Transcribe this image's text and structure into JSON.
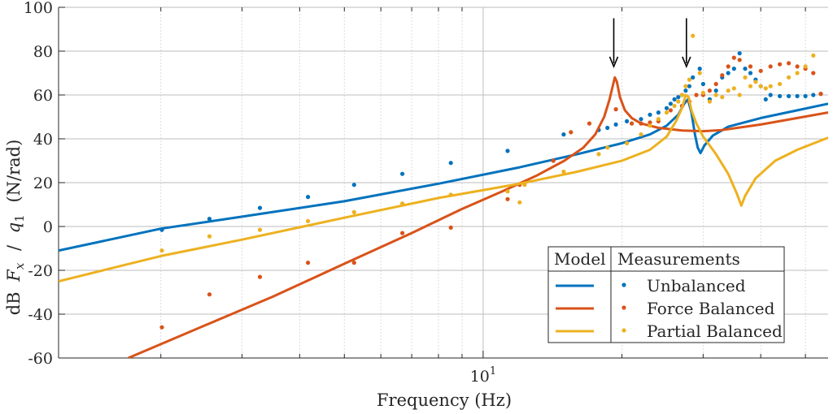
{
  "chart_data": {
    "type": "line",
    "xlabel": "Frequency (Hz)",
    "ylabel_parts": [
      "dB",
      "F",
      "x",
      "/",
      "q",
      "1",
      "(N/rad)"
    ],
    "x_scale": "log",
    "xlim": [
      1.2,
      56
    ],
    "ylim": [
      -60,
      100
    ],
    "y_ticks": [
      -60,
      -40,
      -20,
      0,
      20,
      40,
      60,
      80,
      100
    ],
    "y_tick_labels": [
      "-60",
      "-40",
      "-20",
      "0",
      "20",
      "40",
      "60",
      "80",
      "100"
    ],
    "x_tick_label": {
      "base": "10",
      "exp": "1",
      "value": 10
    },
    "grid": true,
    "legend": {
      "placement": "bottom-right",
      "header_model": "Model",
      "header_measurements": "Measurements",
      "entries": [
        "Unbalanced",
        "Force Balanced",
        "Partial Balanced"
      ]
    },
    "annotations": [
      {
        "type": "arrow",
        "x": 19.2,
        "y_from": 95,
        "y_to": 73
      },
      {
        "type": "arrow",
        "x": 27.6,
        "y_from": 95,
        "y_to": 73
      }
    ],
    "series": [
      {
        "name": "Unbalanced",
        "color": "#0072BD",
        "model": [
          [
            1.2,
            -11
          ],
          [
            2,
            -1
          ],
          [
            3,
            4.5
          ],
          [
            5,
            11.5
          ],
          [
            8,
            19.5
          ],
          [
            12,
            27
          ],
          [
            16,
            33
          ],
          [
            20,
            38
          ],
          [
            23,
            42
          ],
          [
            25,
            46
          ],
          [
            26.5,
            51
          ],
          [
            27.3,
            56
          ],
          [
            27.8,
            58
          ],
          [
            28.3,
            52
          ],
          [
            28.8,
            42
          ],
          [
            29.2,
            36
          ],
          [
            29.6,
            33.5
          ],
          [
            30.2,
            37
          ],
          [
            31.5,
            41.5
          ],
          [
            34,
            45.5
          ],
          [
            40,
            49.5
          ],
          [
            48,
            53
          ],
          [
            56,
            56
          ]
        ],
        "measured": [
          [
            2.01,
            -1.5
          ],
          [
            2.55,
            3.5
          ],
          [
            3.28,
            8.5
          ],
          [
            4.17,
            13.5
          ],
          [
            5.25,
            19
          ],
          [
            6.68,
            24
          ],
          [
            8.51,
            29
          ],
          [
            11.3,
            34.5
          ],
          [
            14.95,
            42
          ],
          [
            17.81,
            44
          ],
          [
            18.6,
            45
          ],
          [
            19.4,
            46.5
          ],
          [
            20.5,
            48
          ],
          [
            22,
            49
          ],
          [
            23,
            51
          ],
          [
            24,
            52
          ],
          [
            25,
            54
          ],
          [
            25.5,
            56
          ],
          [
            26,
            58
          ],
          [
            26.5,
            59
          ],
          [
            27,
            60
          ],
          [
            27.5,
            62
          ],
          [
            28,
            64
          ],
          [
            28.5,
            68
          ],
          [
            29.5,
            72
          ],
          [
            30,
            65
          ],
          [
            31,
            58
          ],
          [
            32,
            62
          ],
          [
            33,
            68
          ],
          [
            34,
            70
          ],
          [
            35,
            72
          ],
          [
            36,
            79
          ],
          [
            37,
            72
          ],
          [
            38,
            70
          ],
          [
            39,
            67
          ],
          [
            40,
            64
          ],
          [
            41,
            58
          ],
          [
            42,
            60
          ],
          [
            44,
            59.5
          ],
          [
            46,
            59.5
          ],
          [
            48,
            59.5
          ],
          [
            50,
            59.5
          ],
          [
            52,
            60
          ],
          [
            54,
            60.5
          ]
        ]
      },
      {
        "name": "Force Balanced",
        "color": "#D95319",
        "model": [
          [
            1.7,
            -60
          ],
          [
            2.5,
            -45
          ],
          [
            3.5,
            -32
          ],
          [
            5,
            -17
          ],
          [
            7,
            -3
          ],
          [
            9,
            8
          ],
          [
            11,
            16
          ],
          [
            13,
            23
          ],
          [
            15,
            30
          ],
          [
            16.5,
            36
          ],
          [
            17.5,
            42
          ],
          [
            18.3,
            50
          ],
          [
            18.8,
            58
          ],
          [
            19.1,
            64
          ],
          [
            19.3,
            68
          ],
          [
            19.5,
            66
          ],
          [
            19.8,
            59
          ],
          [
            20.3,
            53
          ],
          [
            21,
            49.5
          ],
          [
            22,
            47
          ],
          [
            24,
            45
          ],
          [
            27,
            43.8
          ],
          [
            30,
            43.5
          ],
          [
            33,
            44
          ],
          [
            40,
            46.5
          ],
          [
            48,
            49.5
          ],
          [
            56,
            52
          ]
        ],
        "measured": [
          [
            2.01,
            -46
          ],
          [
            2.55,
            -31
          ],
          [
            3.28,
            -23
          ],
          [
            4.17,
            -16.5
          ],
          [
            5.25,
            -16.5
          ],
          [
            6.68,
            -3
          ],
          [
            8.51,
            -0.5
          ],
          [
            11.3,
            12.5
          ],
          [
            12,
            19
          ],
          [
            12.3,
            19.5
          ],
          [
            14.2,
            30
          ],
          [
            15.5,
            43
          ],
          [
            17,
            47
          ],
          [
            19.4,
            53.5
          ],
          [
            21,
            47
          ],
          [
            22,
            47
          ],
          [
            23,
            47.5
          ],
          [
            24,
            48
          ],
          [
            25.5,
            53
          ],
          [
            27,
            55
          ],
          [
            28,
            57
          ],
          [
            29,
            60
          ],
          [
            30,
            60
          ],
          [
            31,
            62
          ],
          [
            32,
            65
          ],
          [
            33,
            69
          ],
          [
            34,
            73
          ],
          [
            35,
            77
          ],
          [
            36,
            76
          ],
          [
            38,
            73
          ],
          [
            40,
            71
          ],
          [
            42,
            73
          ],
          [
            44,
            74
          ],
          [
            46,
            74.5
          ],
          [
            48,
            73
          ],
          [
            50,
            72
          ],
          [
            52,
            70
          ],
          [
            54,
            60.5
          ]
        ]
      },
      {
        "name": "Partial Balanced",
        "color": "#EDB120",
        "model": [
          [
            1.2,
            -25
          ],
          [
            2,
            -13.5
          ],
          [
            3,
            -6
          ],
          [
            5,
            4
          ],
          [
            8,
            13
          ],
          [
            12,
            19.5
          ],
          [
            16,
            25
          ],
          [
            20,
            30
          ],
          [
            23,
            35
          ],
          [
            25,
            41
          ],
          [
            26.2,
            48
          ],
          [
            27,
            54
          ],
          [
            27.5,
            60
          ],
          [
            27.9,
            59
          ],
          [
            28.3,
            53
          ],
          [
            29,
            47
          ],
          [
            30,
            41
          ],
          [
            32,
            33
          ],
          [
            34,
            24
          ],
          [
            35.5,
            15
          ],
          [
            36.3,
            9.5
          ],
          [
            37,
            14
          ],
          [
            39,
            22
          ],
          [
            43,
            30
          ],
          [
            48,
            35
          ],
          [
            56,
            40.5
          ]
        ],
        "measured": [
          [
            2.01,
            -11
          ],
          [
            2.55,
            -4.5
          ],
          [
            3.28,
            -1.5
          ],
          [
            4.17,
            2.5
          ],
          [
            5.25,
            6.5
          ],
          [
            6.68,
            10.5
          ],
          [
            8.51,
            14.5
          ],
          [
            11.3,
            16
          ],
          [
            12,
            11
          ],
          [
            12.3,
            19
          ],
          [
            14.95,
            25
          ],
          [
            17.81,
            33
          ],
          [
            18.6,
            36
          ],
          [
            20.5,
            38
          ],
          [
            22,
            42
          ],
          [
            23,
            46
          ],
          [
            24,
            49
          ],
          [
            25,
            52
          ],
          [
            26,
            55
          ],
          [
            26.5,
            57
          ],
          [
            27,
            60
          ],
          [
            27.5,
            64
          ],
          [
            28,
            67
          ],
          [
            28.5,
            87
          ],
          [
            29.5,
            70
          ],
          [
            30,
            61
          ],
          [
            31,
            57
          ],
          [
            32,
            60
          ],
          [
            33,
            59
          ],
          [
            34,
            62
          ],
          [
            35,
            63
          ],
          [
            36,
            60
          ],
          [
            37,
            68
          ],
          [
            38,
            64
          ],
          [
            39,
            66
          ],
          [
            40,
            64
          ],
          [
            41,
            63
          ],
          [
            42,
            64
          ],
          [
            44,
            65
          ],
          [
            46,
            68
          ],
          [
            48,
            70
          ],
          [
            50,
            73
          ],
          [
            52,
            78
          ]
        ]
      }
    ]
  }
}
